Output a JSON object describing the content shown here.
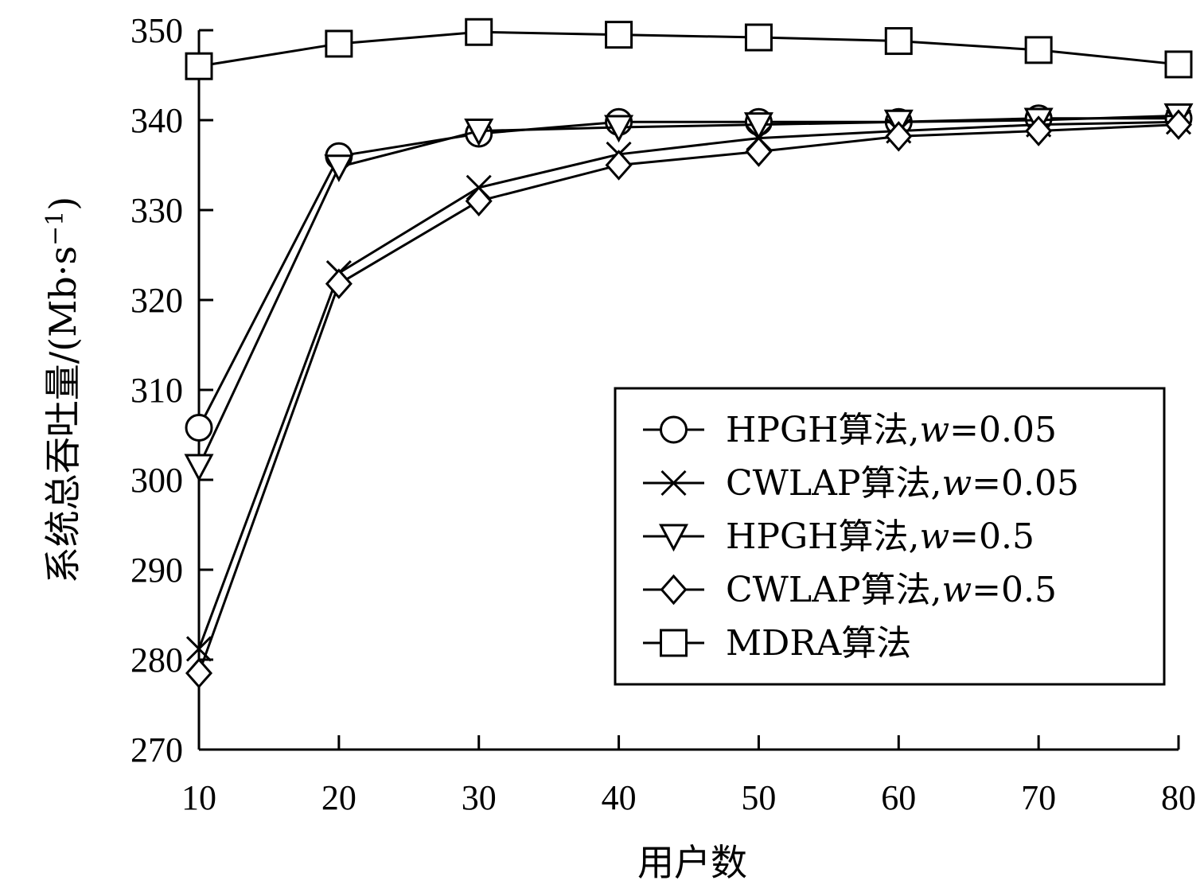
{
  "chart_data": {
    "type": "line",
    "xlabel": "用户数",
    "ylabel_main": "系统总吞吐量/(Mb·s",
    "ylabel_sup": "−1",
    "ylabel_close": ")",
    "x": [
      10,
      20,
      30,
      40,
      50,
      60,
      70,
      80
    ],
    "x_ticks": [
      "10",
      "20",
      "30",
      "40",
      "50",
      "60",
      "70",
      "80"
    ],
    "ylim": [
      270,
      350
    ],
    "y_ticks": [
      "270",
      "280",
      "290",
      "300",
      "310",
      "320",
      "330",
      "340",
      "350"
    ],
    "grid": false,
    "legend_position": "bottom-right",
    "series": [
      {
        "name": "HPGH算法,w=0.05",
        "name_prefix": "HPGH算法,",
        "name_var": "w",
        "name_suffix": "=0.05",
        "marker": "circle",
        "values": [
          305.8,
          336.0,
          338.5,
          339.8,
          339.8,
          339.8,
          340.2,
          340.2
        ]
      },
      {
        "name": "CWLAP算法,w=0.05",
        "name_prefix": "CWLAP算法,",
        "name_var": "w",
        "name_suffix": "=0.05",
        "marker": "x",
        "values": [
          281.2,
          323.0,
          332.5,
          336.2,
          338.0,
          338.8,
          339.5,
          339.8
        ]
      },
      {
        "name": "HPGH算法,w=0.5",
        "name_prefix": "HPGH算法,",
        "name_var": "w",
        "name_suffix": "=0.5",
        "marker": "triangle-down",
        "values": [
          301.5,
          334.8,
          338.8,
          339.2,
          339.5,
          339.8,
          340.0,
          340.5
        ]
      },
      {
        "name": "CWLAP算法,w=0.5",
        "name_prefix": "CWLAP算法,",
        "name_var": "w",
        "name_suffix": "=0.5",
        "marker": "diamond",
        "values": [
          278.5,
          321.8,
          331.0,
          335.0,
          336.5,
          338.2,
          338.8,
          339.5
        ]
      },
      {
        "name": "MDRA算法",
        "name_prefix": "MDRA算法",
        "name_var": "",
        "name_suffix": "",
        "marker": "square",
        "values": [
          346.0,
          348.5,
          349.8,
          349.5,
          349.2,
          348.8,
          347.8,
          346.2
        ]
      }
    ]
  }
}
